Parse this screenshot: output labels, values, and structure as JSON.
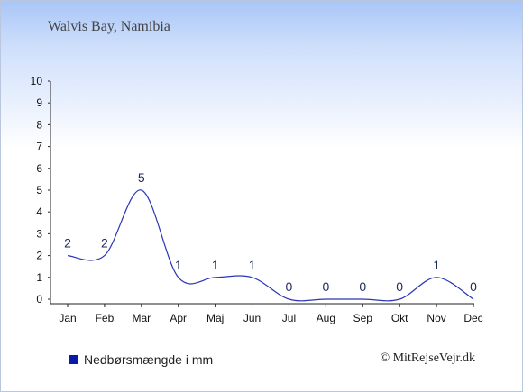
{
  "header": {
    "location": "Walvis Bay, Namibia"
  },
  "legend": {
    "label": "Nedbørsmængde i mm",
    "swatch_color": "#0a1aa8"
  },
  "footer": {
    "copyright": "© MitRejseVejr.dk"
  },
  "colors": {
    "line": "#2b35b5",
    "label": "#1a2a5c",
    "axis": "#222222"
  },
  "chart_data": {
    "type": "line",
    "title": "",
    "xlabel": "",
    "ylabel": "",
    "categories": [
      "Jan",
      "Feb",
      "Mar",
      "Apr",
      "Maj",
      "Jun",
      "Jul",
      "Aug",
      "Sep",
      "Okt",
      "Nov",
      "Dec"
    ],
    "series": [
      {
        "name": "Nedbørsmængde i mm",
        "values": [
          2,
          2,
          5,
          1,
          1,
          1,
          0,
          0,
          0,
          0,
          1,
          0
        ]
      }
    ],
    "data_labels": [
      "2",
      "2",
      "5",
      "1",
      "1",
      "1",
      "0",
      "0",
      "0",
      "0",
      "1",
      "0"
    ],
    "yticks": [
      0,
      1,
      2,
      3,
      4,
      5,
      6,
      7,
      8,
      9,
      10
    ],
    "ylim": [
      0,
      10
    ],
    "grid": false,
    "legend_position": "bottom-left"
  }
}
